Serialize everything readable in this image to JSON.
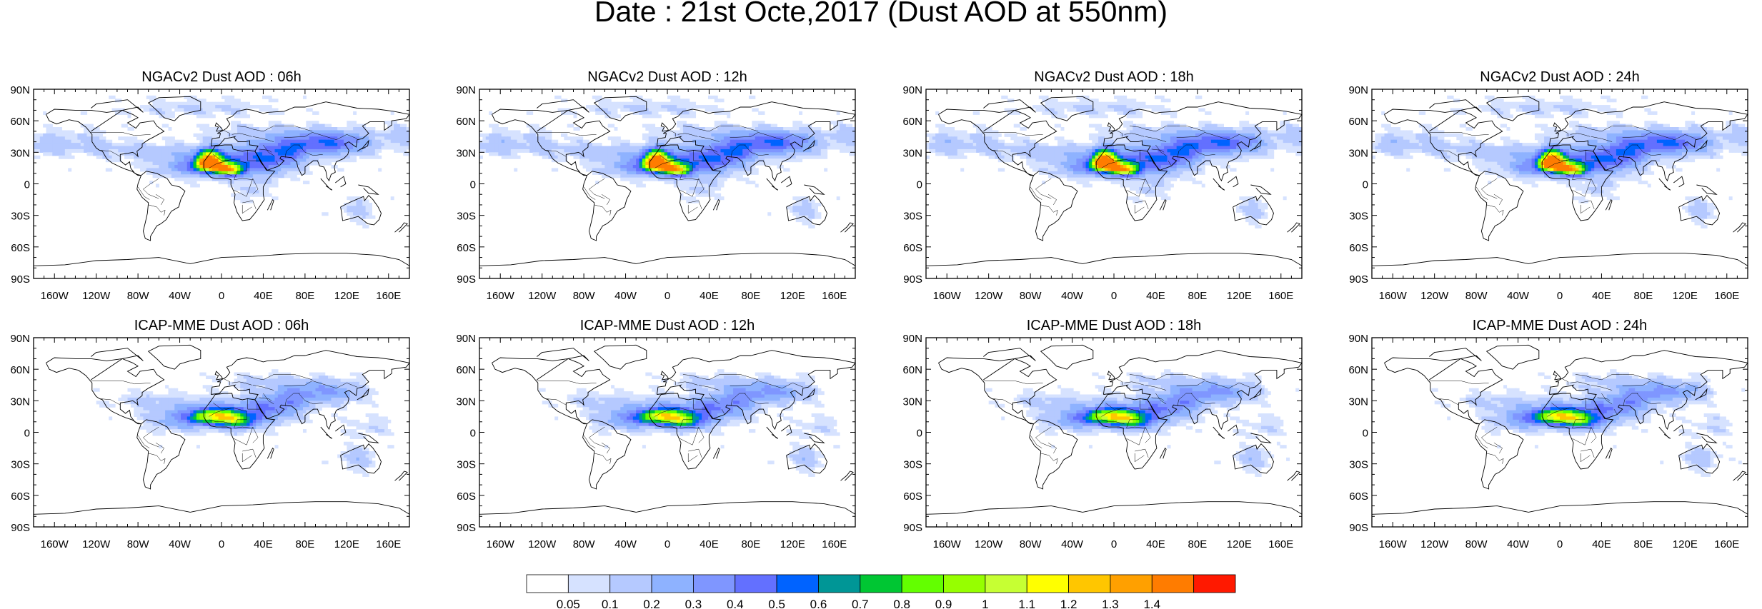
{
  "figure": {
    "title": "Date : 21st Octe,2017 (Dust AOD at 550nm)"
  },
  "panels": [
    {
      "title": "NGACv2 Dust AOD : 06h",
      "model": "NGACv2",
      "lead": "06h"
    },
    {
      "title": "NGACv2 Dust AOD : 12h",
      "model": "NGACv2",
      "lead": "12h"
    },
    {
      "title": "NGACv2 Dust AOD : 18h",
      "model": "NGACv2",
      "lead": "18h"
    },
    {
      "title": "NGACv2 Dust AOD : 24h",
      "model": "NGACv2",
      "lead": "24h"
    },
    {
      "title": "ICAP-MME Dust AOD : 06h",
      "model": "ICAP-MME",
      "lead": "06h"
    },
    {
      "title": "ICAP-MME Dust AOD : 12h",
      "model": "ICAP-MME",
      "lead": "12h"
    },
    {
      "title": "ICAP-MME Dust AOD : 18h",
      "model": "ICAP-MME",
      "lead": "18h"
    },
    {
      "title": "ICAP-MME Dust AOD : 24h",
      "model": "ICAP-MME",
      "lead": "24h"
    }
  ],
  "axes": {
    "lat_ticks": [
      "90N",
      "60N",
      "30N",
      "0",
      "30S",
      "60S",
      "90S"
    ],
    "lon_ticks": [
      "160W",
      "120W",
      "80W",
      "40W",
      "0",
      "40E",
      "80E",
      "120E",
      "160E"
    ]
  },
  "colorbar": {
    "labels": [
      "0.05",
      "0.1",
      "0.2",
      "0.3",
      "0.4",
      "0.5",
      "0.6",
      "0.7",
      "0.8",
      "0.9",
      "1",
      "1.1",
      "1.2",
      "1.3",
      "1.4"
    ],
    "colors": [
      "#ffffff",
      "#d6e2ff",
      "#b5c9ff",
      "#8eb2ff",
      "#7f96ff",
      "#6370ff",
      "#0063ff",
      "#009696",
      "#00c633",
      "#63ff00",
      "#96ff00",
      "#c6ff33",
      "#ffff00",
      "#ffc600",
      "#ffa000",
      "#ff7c00",
      "#ff1900"
    ]
  }
}
